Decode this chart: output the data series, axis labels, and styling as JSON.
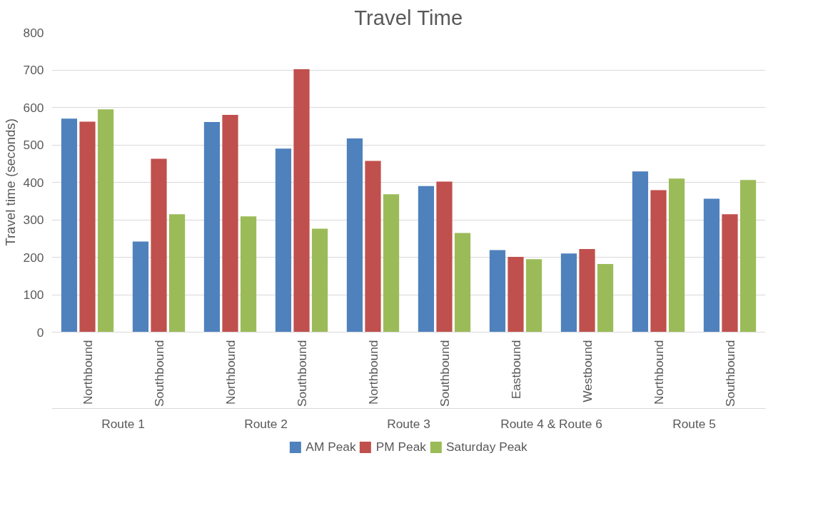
{
  "chart_data": {
    "type": "bar",
    "title": "Travel Time",
    "ylabel": "Travel time (seconds)",
    "categories": [
      "Northbound",
      "Southbound",
      "Northbound",
      "Southbound",
      "Northbound",
      "Southbound",
      "Eastbound",
      "Westbound",
      "Northbound",
      "Southbound"
    ],
    "annotations": [
      "Route 1",
      "Route 2",
      "Route 3",
      "Route 4 & Route 6",
      "Route 5"
    ],
    "series": [
      {
        "name": "AM Peak",
        "color": "#4f81bd",
        "values": [
          570,
          242,
          561,
          490,
          517,
          390,
          219,
          210,
          429,
          356
        ]
      },
      {
        "name": "PM Peak",
        "color": "#c0504d",
        "values": [
          562,
          463,
          580,
          702,
          457,
          402,
          201,
          222,
          379,
          315
        ]
      },
      {
        "name": "Saturday Peak",
        "color": "#9bbb59",
        "values": [
          595,
          315,
          309,
          276,
          368,
          265,
          195,
          182,
          410,
          406
        ]
      }
    ],
    "ylim": [
      0,
      800
    ],
    "yticks": [
      0,
      100,
      200,
      300,
      400,
      500,
      600,
      700,
      800
    ],
    "grid": "y",
    "legend": "bottom"
  }
}
